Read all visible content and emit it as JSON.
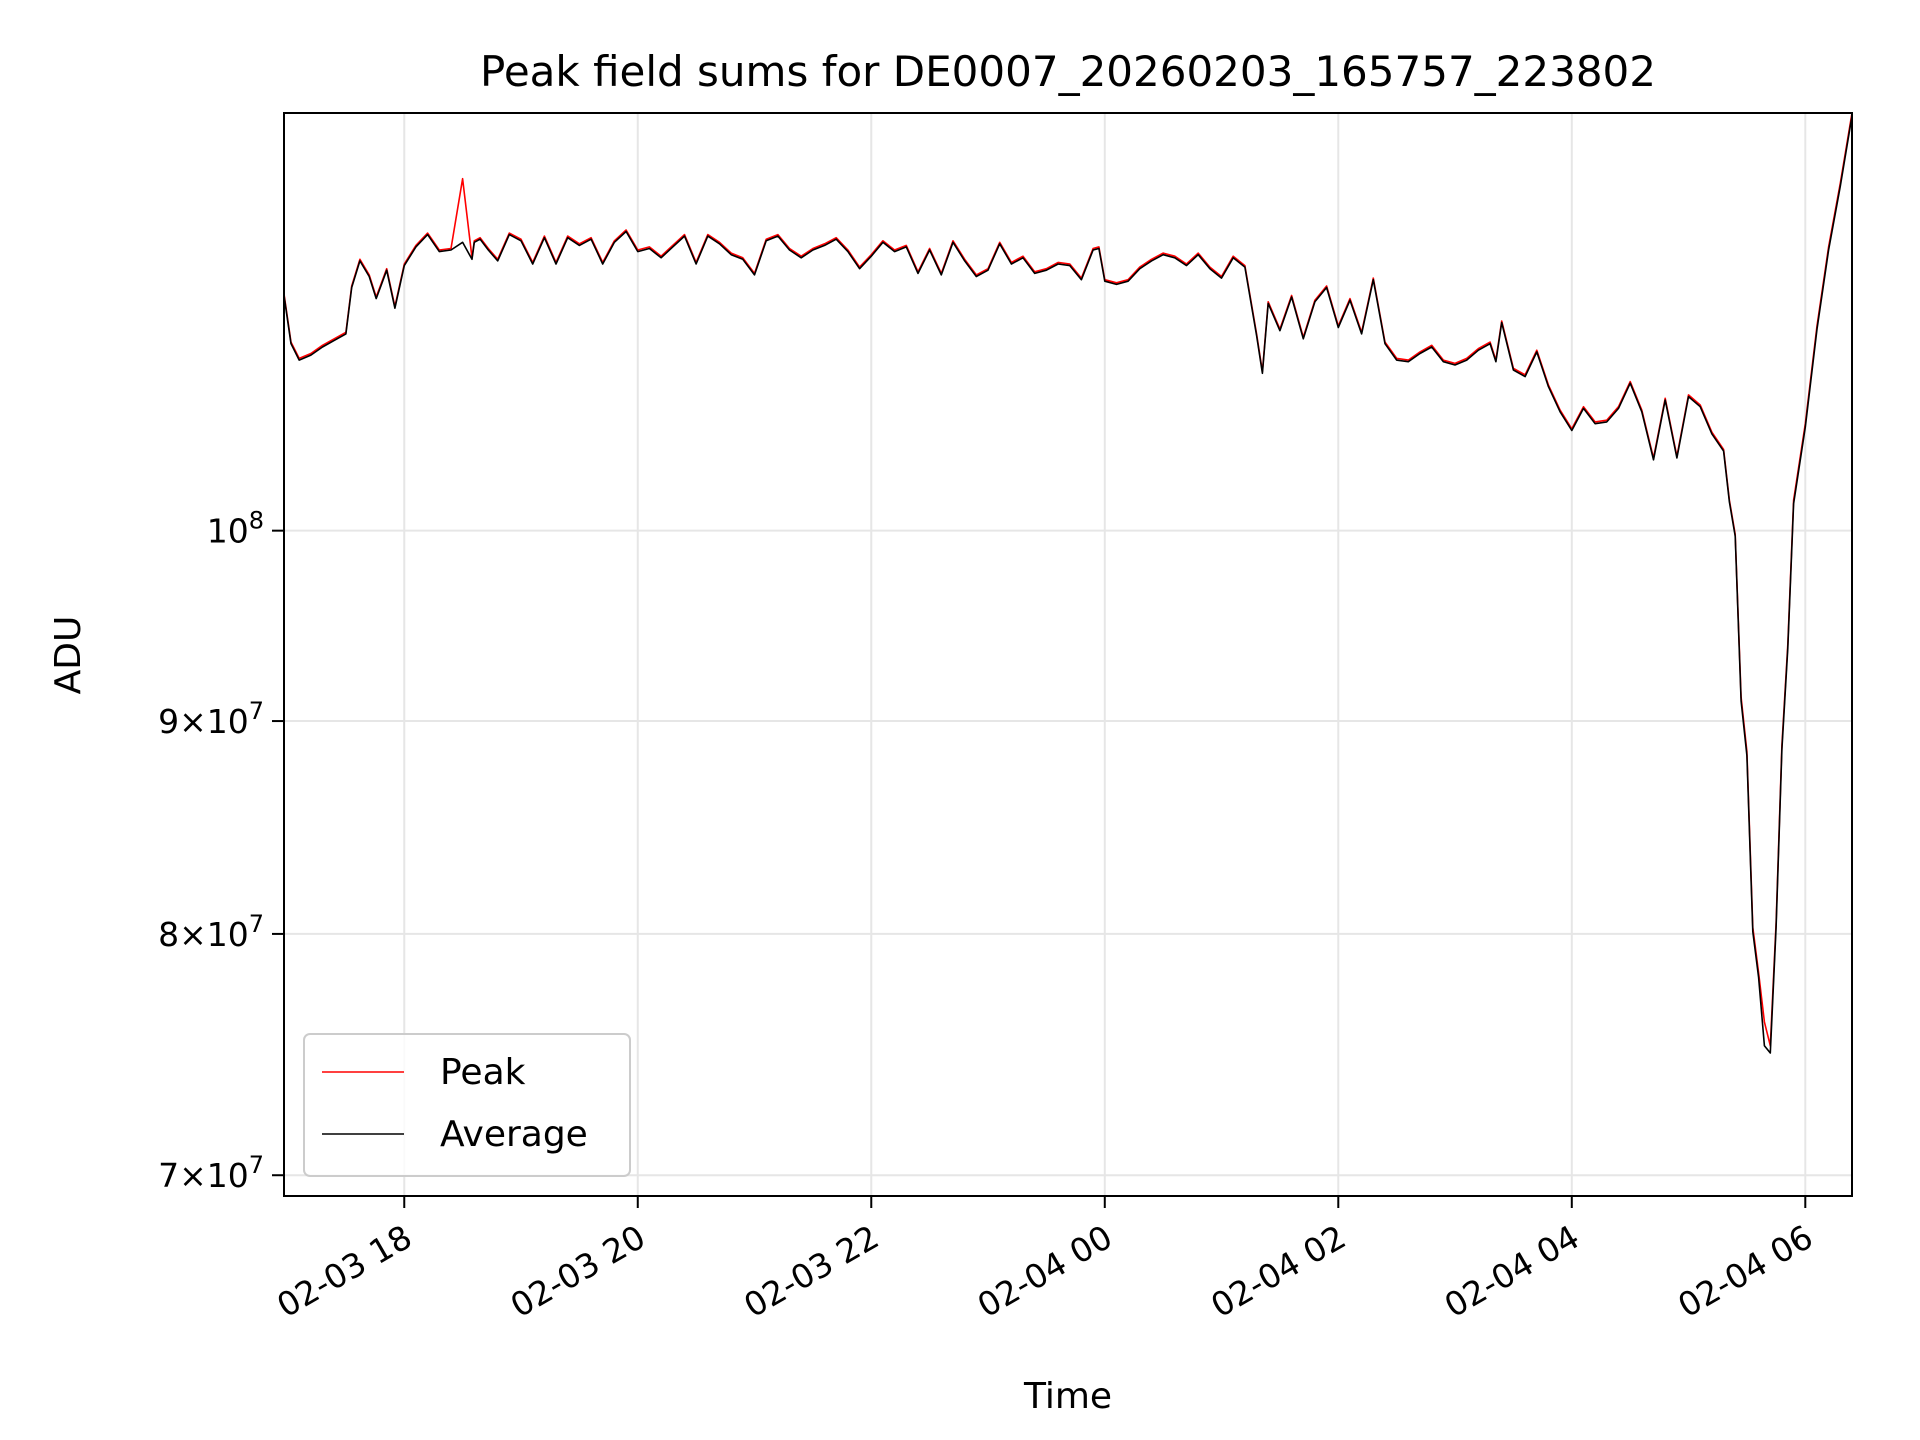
{
  "chart_data": {
    "type": "line",
    "title": "Peak field sums for DE0007_20260203_165757_223802",
    "xlabel": "Time",
    "ylabel": "ADU",
    "yscale": "log",
    "grid": true,
    "legend_position": "lower-left",
    "x_unit": "hours since 2026-02-03 00:00",
    "xlim": [
      16.97,
      30.4
    ],
    "ylim": [
      69200000,
      126000000
    ],
    "x_ticks": [
      {
        "value": 18,
        "label": "02-03 18"
      },
      {
        "value": 20,
        "label": "02-03 20"
      },
      {
        "value": 22,
        "label": "02-03 22"
      },
      {
        "value": 24,
        "label": "02-04 00"
      },
      {
        "value": 26,
        "label": "02-04 02"
      },
      {
        "value": 28,
        "label": "02-04 04"
      },
      {
        "value": 30,
        "label": "02-04 06"
      }
    ],
    "y_ticks": [
      {
        "value": 70000000,
        "mantissa": "7",
        "exponent": "7"
      },
      {
        "value": 80000000,
        "mantissa": "8",
        "exponent": "7"
      },
      {
        "value": 90000000,
        "mantissa": "9",
        "exponent": "7"
      },
      {
        "value": 100000000,
        "mantissa": "",
        "exponent": "8"
      }
    ],
    "tick_base": "10",
    "times_sign": "×",
    "series": [
      {
        "name": "Peak",
        "color": "#ff0000",
        "x": [
          16.97,
          17.03,
          17.1,
          17.2,
          17.3,
          17.4,
          17.5,
          17.55,
          17.62,
          17.7,
          17.76,
          17.8,
          17.85,
          17.92,
          18.0,
          18.1,
          18.2,
          18.3,
          18.4,
          18.5,
          18.58,
          18.6,
          18.65,
          18.72,
          18.8,
          18.9,
          19.0,
          19.1,
          19.2,
          19.3,
          19.4,
          19.5,
          19.6,
          19.7,
          19.8,
          19.9,
          20.0,
          20.1,
          20.2,
          20.3,
          20.4,
          20.5,
          20.6,
          20.7,
          20.8,
          20.9,
          21.0,
          21.1,
          21.2,
          21.3,
          21.4,
          21.5,
          21.6,
          21.7,
          21.8,
          21.9,
          22.0,
          22.1,
          22.2,
          22.3,
          22.4,
          22.5,
          22.6,
          22.7,
          22.8,
          22.9,
          23.0,
          23.1,
          23.2,
          23.3,
          23.4,
          23.5,
          23.6,
          23.7,
          23.8,
          23.9,
          23.95,
          24.0,
          24.1,
          24.2,
          24.3,
          24.4,
          24.5,
          24.6,
          24.7,
          24.8,
          24.9,
          25.0,
          25.1,
          25.2,
          25.3,
          25.35,
          25.4,
          25.5,
          25.6,
          25.7,
          25.8,
          25.9,
          26.0,
          26.1,
          26.2,
          26.3,
          26.4,
          26.5,
          26.6,
          26.7,
          26.8,
          26.9,
          27.0,
          27.1,
          27.2,
          27.3,
          27.35,
          27.4,
          27.5,
          27.6,
          27.7,
          27.8,
          27.9,
          28.0,
          28.1,
          28.2,
          28.3,
          28.4,
          28.5,
          28.6,
          28.7,
          28.8,
          28.9,
          29.0,
          29.1,
          29.2,
          29.3,
          29.35,
          29.4,
          29.45,
          29.5,
          29.55,
          29.6,
          29.65,
          29.7,
          29.75,
          29.8,
          29.85,
          29.9,
          30.0,
          30.1,
          30.2,
          30.3,
          30.4
        ],
        "y": [
          114000000,
          111000000,
          110000000,
          110300000,
          110800000,
          111200000,
          111600000,
          114500000,
          116200000,
          115200000,
          113800000,
          114600000,
          115600000,
          113200000,
          115900000,
          117100000,
          117900000,
          116800000,
          116900000,
          121500000,
          116300000,
          117400000,
          117600000,
          116900000,
          116200000,
          117900000,
          117500000,
          116000000,
          117700000,
          116000000,
          117700000,
          117200000,
          117600000,
          116000000,
          117400000,
          118100000,
          116800000,
          117000000,
          116400000,
          117100000,
          117800000,
          116000000,
          117800000,
          117300000,
          116600000,
          116300000,
          115300000,
          117500000,
          117800000,
          116900000,
          116400000,
          116900000,
          117200000,
          117600000,
          116800000,
          115700000,
          116500000,
          117400000,
          116800000,
          117100000,
          115400000,
          116900000,
          115300000,
          117400000,
          116200000,
          115200000,
          115600000,
          117300000,
          116000000,
          116400000,
          115400000,
          115600000,
          116000000,
          115900000,
          115000000,
          116900000,
          117000000,
          114900000,
          114700000,
          114900000,
          115700000,
          116200000,
          116600000,
          116400000,
          115900000,
          116600000,
          115700000,
          115100000,
          116400000,
          115800000,
          111500000,
          109200000,
          113500000,
          111800000,
          113900000,
          111300000,
          113600000,
          114500000,
          112000000,
          113700000,
          111600000,
          115000000,
          111000000,
          110000000,
          109900000,
          110400000,
          110800000,
          109900000,
          109700000,
          110000000,
          110600000,
          111000000,
          109900000,
          112300000,
          109400000,
          109000000,
          110500000,
          108400000,
          106900000,
          105800000,
          107100000,
          106200000,
          106300000,
          107100000,
          108600000,
          106900000,
          104100000,
          107600000,
          104200000,
          107800000,
          107200000,
          105600000,
          104600000,
          101700000,
          99800000,
          91200000,
          88500000,
          80300000,
          78300000,
          76200000,
          75200000,
          80500000,
          88800000,
          93900000,
          101700000,
          106100000,
          112000000,
          117000000,
          121200000,
          126000000
        ]
      },
      {
        "name": "Average",
        "color": "#000000",
        "x": [
          16.97,
          17.03,
          17.1,
          17.2,
          17.3,
          17.4,
          17.5,
          17.55,
          17.62,
          17.7,
          17.76,
          17.8,
          17.85,
          17.92,
          18.0,
          18.1,
          18.2,
          18.3,
          18.4,
          18.5,
          18.58,
          18.6,
          18.65,
          18.72,
          18.8,
          18.9,
          19.0,
          19.1,
          19.2,
          19.3,
          19.4,
          19.5,
          19.6,
          19.7,
          19.8,
          19.9,
          20.0,
          20.1,
          20.2,
          20.3,
          20.4,
          20.5,
          20.6,
          20.7,
          20.8,
          20.9,
          21.0,
          21.1,
          21.2,
          21.3,
          21.4,
          21.5,
          21.6,
          21.7,
          21.8,
          21.9,
          22.0,
          22.1,
          22.2,
          22.3,
          22.4,
          22.5,
          22.6,
          22.7,
          22.8,
          22.9,
          23.0,
          23.1,
          23.2,
          23.3,
          23.4,
          23.5,
          23.6,
          23.7,
          23.8,
          23.9,
          23.95,
          24.0,
          24.1,
          24.2,
          24.3,
          24.4,
          24.5,
          24.6,
          24.7,
          24.8,
          24.9,
          25.0,
          25.1,
          25.2,
          25.3,
          25.35,
          25.4,
          25.5,
          25.6,
          25.7,
          25.8,
          25.9,
          26.0,
          26.1,
          26.2,
          26.3,
          26.4,
          26.5,
          26.6,
          26.7,
          26.8,
          26.9,
          27.0,
          27.1,
          27.2,
          27.3,
          27.35,
          27.4,
          27.5,
          27.6,
          27.7,
          27.8,
          27.9,
          28.0,
          28.1,
          28.2,
          28.3,
          28.4,
          28.5,
          28.6,
          28.7,
          28.8,
          28.9,
          29.0,
          29.1,
          29.2,
          29.3,
          29.35,
          29.4,
          29.45,
          29.5,
          29.55,
          29.6,
          29.65,
          29.7,
          29.75,
          29.8,
          29.85,
          29.9,
          30.0,
          30.1,
          30.2,
          30.3,
          30.4
        ],
        "y": [
          113900000,
          110900000,
          109900000,
          110200000,
          110700000,
          111100000,
          111500000,
          114400000,
          116100000,
          115100000,
          113700000,
          114500000,
          115500000,
          113100000,
          115800000,
          117000000,
          117800000,
          116700000,
          116800000,
          117300000,
          116200000,
          117300000,
          117500000,
          116800000,
          116100000,
          117800000,
          117400000,
          115900000,
          117600000,
          115900000,
          117600000,
          117100000,
          117500000,
          115900000,
          117300000,
          118000000,
          116700000,
          116900000,
          116300000,
          117000000,
          117700000,
          115900000,
          117700000,
          117200000,
          116500000,
          116200000,
          115200000,
          117400000,
          117700000,
          116800000,
          116300000,
          116800000,
          117100000,
          117500000,
          116700000,
          115600000,
          116400000,
          117300000,
          116700000,
          117000000,
          115300000,
          116800000,
          115200000,
          117300000,
          116100000,
          115100000,
          115500000,
          117200000,
          115900000,
          116300000,
          115300000,
          115500000,
          115900000,
          115800000,
          114900000,
          116800000,
          116900000,
          114800000,
          114600000,
          114800000,
          115600000,
          116100000,
          116500000,
          116300000,
          115800000,
          116500000,
          115600000,
          115000000,
          116300000,
          115700000,
          111400000,
          109100000,
          113400000,
          111700000,
          113800000,
          111200000,
          113500000,
          114400000,
          111900000,
          113600000,
          111500000,
          114900000,
          110900000,
          109900000,
          109800000,
          110300000,
          110700000,
          109800000,
          109600000,
          109900000,
          110500000,
          110900000,
          109800000,
          112200000,
          109300000,
          108900000,
          110400000,
          108300000,
          106800000,
          105700000,
          107000000,
          106100000,
          106200000,
          107000000,
          108500000,
          106800000,
          104000000,
          107500000,
          104100000,
          107700000,
          107100000,
          105500000,
          104500000,
          101600000,
          99700000,
          91000000,
          88300000,
          80100000,
          78100000,
          75200000,
          74900000,
          80300000,
          88600000,
          93700000,
          101500000,
          105900000,
          111800000,
          116800000,
          121000000,
          125800000
        ]
      }
    ]
  }
}
